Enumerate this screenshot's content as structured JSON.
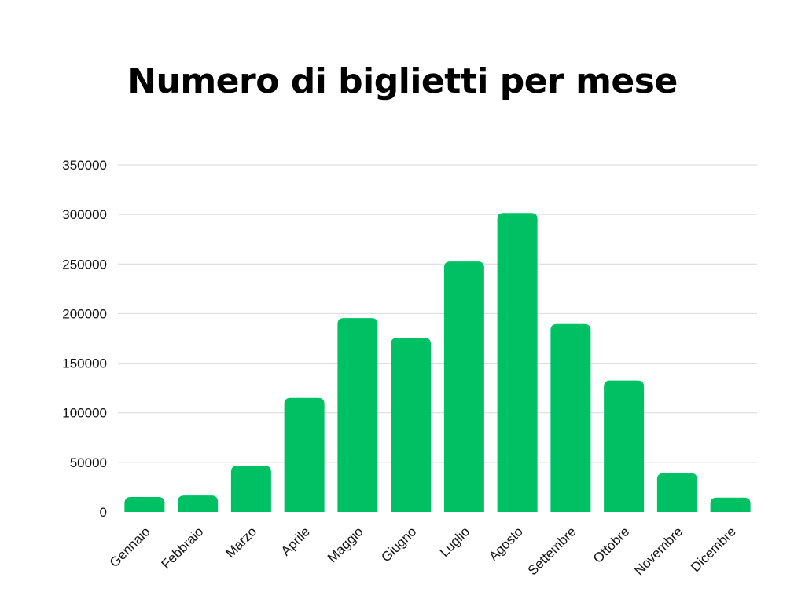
{
  "chart_data": {
    "type": "bar",
    "title": "Numero di biglietti per mese",
    "xlabel": "",
    "ylabel": "",
    "categories": [
      "Gennaio",
      "Febbraio",
      "Marzo",
      "Aprile",
      "Maggio",
      "Giugno",
      "Luglio",
      "Agosto",
      "Settembre",
      "Ottobre",
      "Novembre",
      "Dicembre"
    ],
    "values": [
      15000,
      16500,
      46500,
      115000,
      195500,
      175500,
      252500,
      301500,
      189500,
      132500,
      39000,
      14500
    ],
    "ylim": [
      0,
      350000
    ],
    "yticks": [
      "0",
      "50000",
      "100000",
      "150000",
      "200000",
      "250000",
      "300000",
      "350000"
    ],
    "grid": true,
    "legend": "none",
    "bar_color": "#00c064",
    "grid_color": "#d9d9d9"
  }
}
